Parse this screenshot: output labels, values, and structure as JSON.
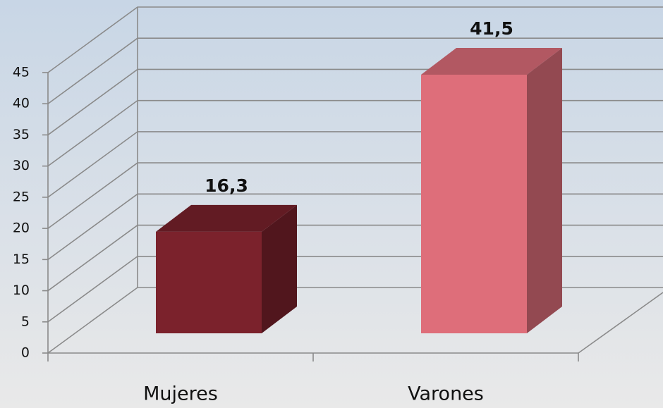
{
  "chart_data": {
    "type": "bar3d",
    "categories": [
      "Mujeres",
      "Varones"
    ],
    "values": [
      16.3,
      41.5
    ],
    "value_labels": [
      "16,3",
      "41,5"
    ],
    "colors": [
      "#7b222c",
      "#de6e7a"
    ],
    "ylim": [
      0,
      45
    ],
    "yticks": [
      0,
      5,
      10,
      15,
      20,
      25,
      30,
      35,
      40,
      45
    ],
    "grid": true
  }
}
